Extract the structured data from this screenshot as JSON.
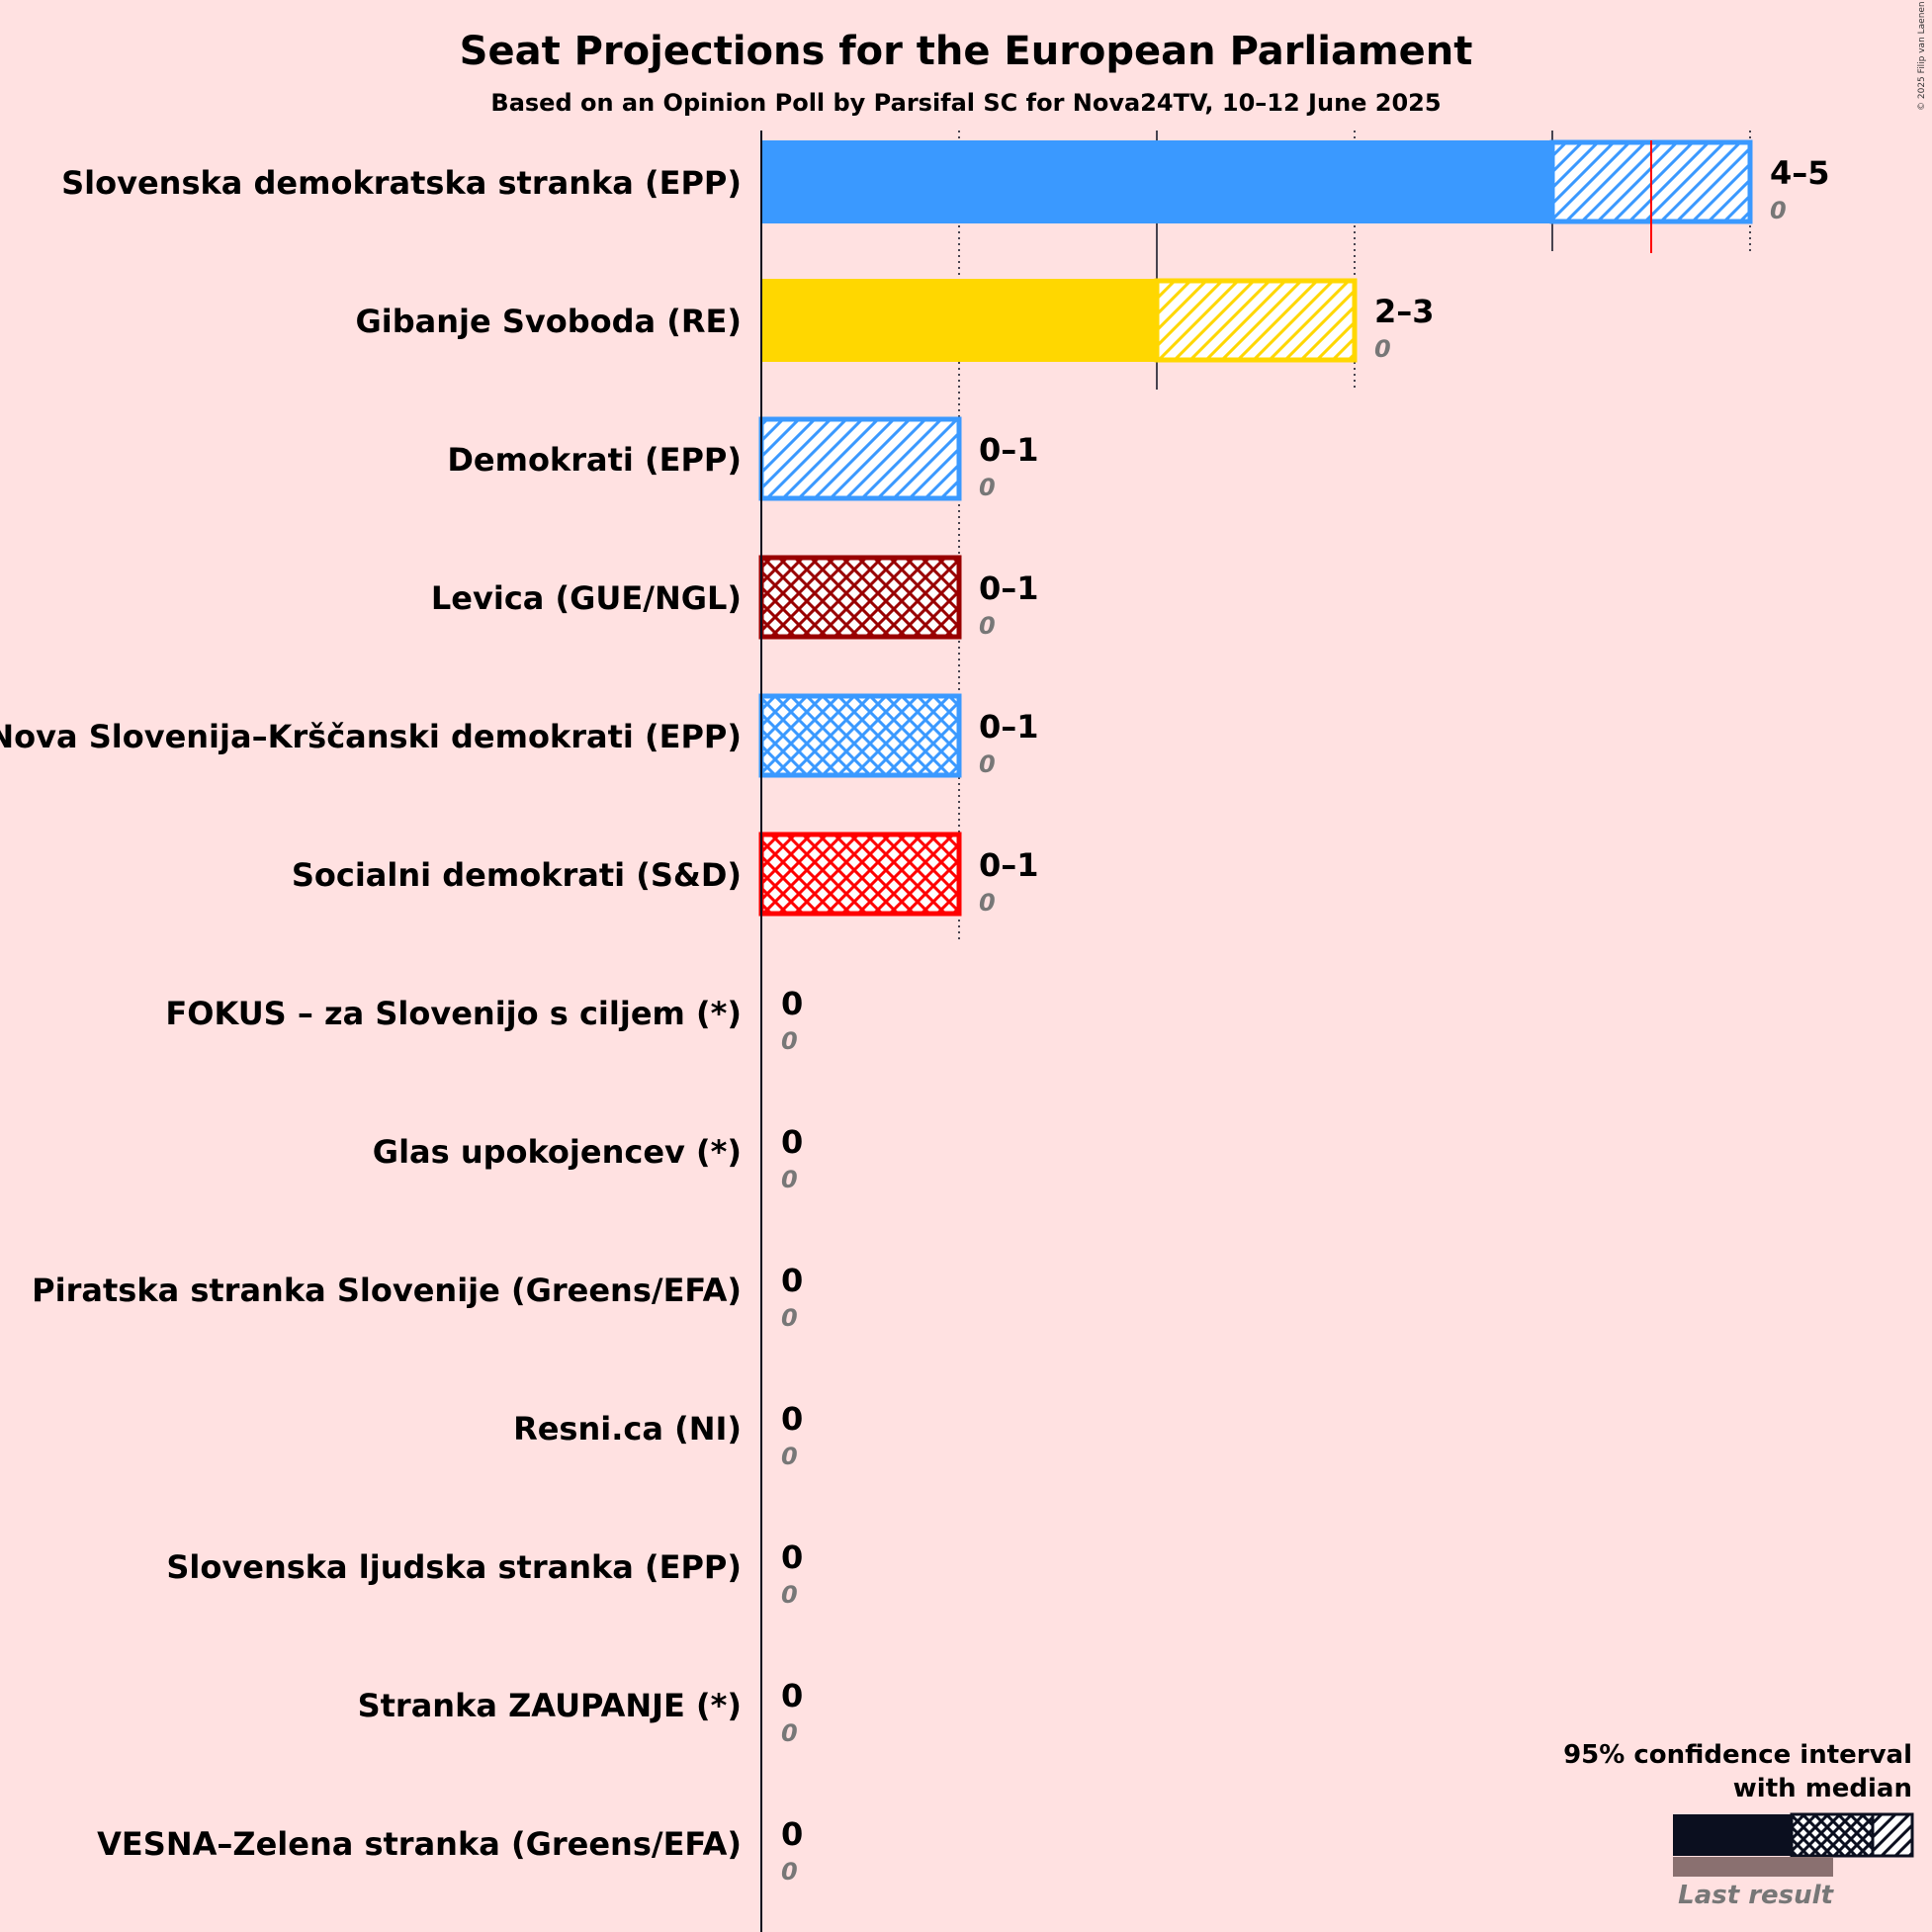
{
  "header": {
    "title": "Seat Projections for the European Parliament",
    "subtitle": "Based on an Opinion Poll by Parsifal SC for Nova24TV, 10–12 June 2025"
  },
  "copyright": "© 2025 Filip van Laenen",
  "legend": {
    "line1": "95% confidence interval",
    "line2": "with median",
    "last_result": "Last result"
  },
  "chart_data": {
    "type": "bar",
    "orientation": "horizontal",
    "title": "Seat Projections for the European Parliament",
    "xlim": [
      0,
      5
    ],
    "majority_marker": 4.5,
    "parties": [
      {
        "name": "Slovenska demokratska stranka (EPP)",
        "low": 4,
        "high": 5,
        "median": 4.5,
        "last": 0,
        "range": "4–5",
        "last_label": "0",
        "color": "#3a99ff",
        "pattern": "diag"
      },
      {
        "name": "Gibanje Svoboda (RE)",
        "low": 2,
        "high": 3,
        "median": 2,
        "last": 0,
        "range": "2–3",
        "last_label": "0",
        "color": "#ffd700",
        "pattern": "diag"
      },
      {
        "name": "Demokrati (EPP)",
        "low": 0,
        "high": 1,
        "median": 0,
        "last": 0,
        "range": "0–1",
        "last_label": "0",
        "color": "#3a99ff",
        "pattern": "diag"
      },
      {
        "name": "Levica (GUE/NGL)",
        "low": 0,
        "high": 1,
        "median": 1,
        "last": 0,
        "range": "0–1",
        "last_label": "0",
        "color": "#990000",
        "pattern": "cross"
      },
      {
        "name": "Nova Slovenija–Krščanski demokrati (EPP)",
        "low": 0,
        "high": 1,
        "median": 1,
        "last": 0,
        "range": "0–1",
        "last_label": "0",
        "color": "#3a99ff",
        "pattern": "cross"
      },
      {
        "name": "Socialni demokrati (S&D)",
        "low": 0,
        "high": 1,
        "median": 1,
        "last": 0,
        "range": "0–1",
        "last_label": "0",
        "color": "#ff0000",
        "pattern": "cross"
      },
      {
        "name": "FOKUS – za Slovenijo s ciljem (*)",
        "low": 0,
        "high": 0,
        "median": 0,
        "last": 0,
        "range": "0",
        "last_label": "0",
        "color": "#999999",
        "pattern": "none"
      },
      {
        "name": "Glas upokojencev (*)",
        "low": 0,
        "high": 0,
        "median": 0,
        "last": 0,
        "range": "0",
        "last_label": "0",
        "color": "#999999",
        "pattern": "none"
      },
      {
        "name": "Piratska stranka Slovenije (Greens/EFA)",
        "low": 0,
        "high": 0,
        "median": 0,
        "last": 0,
        "range": "0",
        "last_label": "0",
        "color": "#999999",
        "pattern": "none"
      },
      {
        "name": "Resni.ca (NI)",
        "low": 0,
        "high": 0,
        "median": 0,
        "last": 0,
        "range": "0",
        "last_label": "0",
        "color": "#999999",
        "pattern": "none"
      },
      {
        "name": "Slovenska ljudska stranka (EPP)",
        "low": 0,
        "high": 0,
        "median": 0,
        "last": 0,
        "range": "0",
        "last_label": "0",
        "color": "#999999",
        "pattern": "none"
      },
      {
        "name": "Stranka ZAUPANJE (*)",
        "low": 0,
        "high": 0,
        "median": 0,
        "last": 0,
        "range": "0",
        "last_label": "0",
        "color": "#999999",
        "pattern": "none"
      },
      {
        "name": "VESNA–Zelena stranka (Greens/EFA)",
        "low": 0,
        "high": 0,
        "median": 0,
        "last": 0,
        "range": "0",
        "last_label": "0",
        "color": "#999999",
        "pattern": "none"
      }
    ]
  }
}
